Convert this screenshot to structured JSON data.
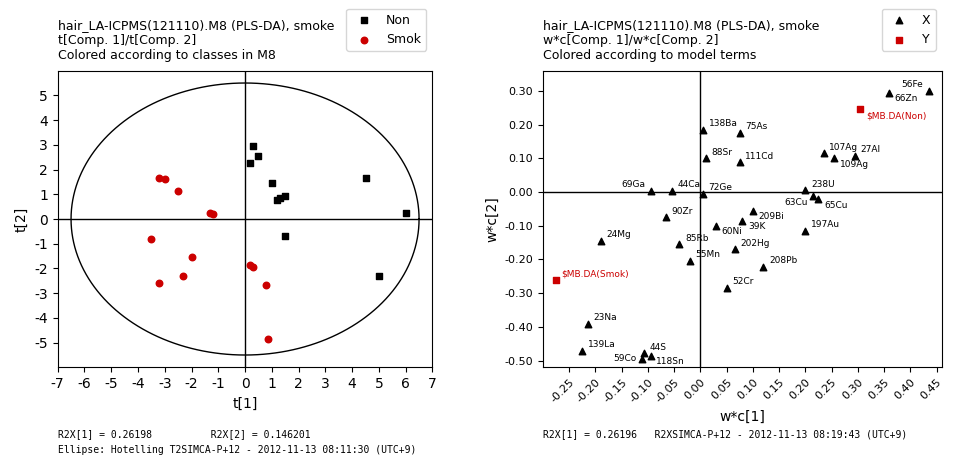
{
  "chart_data": [
    {
      "type": "scatter",
      "title": "hair_LA-ICPMS(121110).M8 (PLS-DA), smoke",
      "subtitle": [
        "t[Comp. 1]/t[Comp. 2]",
        "Colored according to classes in M8"
      ],
      "x_label": "t[1]",
      "y_label": "t[2]",
      "xlim": [
        -7,
        7
      ],
      "ylim": [
        -6,
        6
      ],
      "xticks": [
        -7,
        -6,
        -5,
        -4,
        -3,
        -2,
        -1,
        0,
        1,
        2,
        3,
        4,
        5,
        6,
        7
      ],
      "yticks": [
        -5,
        -4,
        -3,
        -2,
        -1,
        0,
        1,
        2,
        3,
        4,
        5
      ],
      "grid": false,
      "legend": "upper right",
      "ellipse": {
        "rx": 6.5,
        "ry": 5.5
      },
      "crosshair": {
        "x": 0,
        "y": 0
      },
      "series": [
        {
          "name": "Non",
          "color": "#000000",
          "marker": "square",
          "x": [
            0.3,
            0.2,
            0.5,
            1.0,
            1.3,
            1.5,
            1.2,
            1.5,
            4.5,
            5.0,
            6.0
          ],
          "y": [
            2.95,
            2.25,
            2.55,
            1.45,
            0.85,
            0.95,
            0.75,
            -0.7,
            1.65,
            -2.3,
            0.25
          ]
        },
        {
          "name": "Smok",
          "color": "#cc0000",
          "marker": "circle",
          "x": [
            -3.2,
            -3.0,
            -2.5,
            -1.3,
            -1.2,
            0.2,
            0.3,
            0.8,
            0.85,
            -3.5,
            -2.0,
            -2.3,
            -3.2
          ],
          "y": [
            1.65,
            1.6,
            1.15,
            0.25,
            0.2,
            -1.85,
            -1.95,
            -2.65,
            -4.85,
            -0.8,
            -1.55,
            -2.3,
            -2.6
          ]
        }
      ],
      "annotations": [
        "R2X[1] = 0.26198          R2X[2] = 0.146201",
        "Ellipse: Hotelling T2SIMCA-P+12 - 2012-11-13 08:11:30 (UTC+9)"
      ]
    },
    {
      "type": "scatter",
      "title": "hair_LA-ICPMS(121110).M8 (PLS-DA), smoke",
      "subtitle": [
        "w*c[Comp. 1]/w*c[Comp. 2]",
        "Colored according to model terms"
      ],
      "x_label": "w*c[1]",
      "y_label": "w*c[2]",
      "xlim": [
        -0.3,
        0.46
      ],
      "ylim": [
        -0.52,
        0.36
      ],
      "xticks": [
        -0.25,
        {
          "value": -0.2,
          "label": "-0.20"
        },
        -0.15,
        {
          "value": -0.1,
          "label": "-0.10"
        },
        -0.05,
        {
          "value": 0.0,
          "label": "0.00"
        },
        0.05,
        {
          "value": 0.1,
          "label": "0.10"
        },
        0.15,
        {
          "value": 0.2,
          "label": "0.20"
        },
        0.25,
        {
          "value": 0.3,
          "label": "0.30"
        },
        0.35,
        {
          "value": 0.4,
          "label": "0.40"
        },
        0.45
      ],
      "yticks": [
        {
          "value": -0.5,
          "label": "-0.50"
        },
        {
          "value": -0.4,
          "label": "-0.40"
        },
        {
          "value": -0.3,
          "label": "-0.30"
        },
        {
          "value": -0.2,
          "label": "-0.20"
        },
        {
          "value": -0.1,
          "label": "-0.10"
        },
        {
          "value": 0.0,
          "label": "0.00"
        },
        {
          "value": 0.1,
          "label": "0.10"
        },
        {
          "value": 0.2,
          "label": "0.20"
        },
        {
          "value": 0.3,
          "label": "0.30"
        }
      ],
      "grid": false,
      "legend": "upper right",
      "crosshair": {
        "x": 0,
        "y": 0
      },
      "series": [
        {
          "name": "X",
          "color": "#000000",
          "marker": "triangle",
          "labels": [
            "56Fe",
            "66Zn",
            "107Ag",
            "109Ag",
            "27Al",
            "138Ba",
            "75As",
            "88Sr",
            "111Cd",
            "69Ga",
            "44Ca",
            "72Ge",
            "238U",
            "63Cu",
            "65Cu",
            "209Bi",
            "39K",
            "90Zr",
            "60Ni",
            "197Au",
            "85Rb",
            "202Hg",
            "55Mn",
            "208Pb",
            "52Cr",
            "24Mg",
            "23Na",
            "139La",
            "44S",
            "118Sn",
            "59Co"
          ],
          "x": [
            0.435,
            0.36,
            0.235,
            0.255,
            0.295,
            0.005,
            0.075,
            0.01,
            0.075,
            -0.095,
            -0.055,
            0.005,
            0.2,
            0.215,
            0.225,
            0.1,
            0.08,
            -0.065,
            0.03,
            0.2,
            -0.04,
            0.065,
            -0.02,
            0.12,
            0.05,
            -0.19,
            -0.215,
            -0.225,
            -0.108,
            -0.095,
            -0.112
          ],
          "y": [
            0.3,
            0.295,
            0.115,
            0.1,
            0.108,
            0.185,
            0.175,
            0.1,
            0.088,
            0.004,
            0.004,
            -0.005,
            0.005,
            -0.013,
            -0.022,
            -0.055,
            -0.085,
            -0.075,
            -0.1,
            -0.115,
            -0.155,
            -0.17,
            -0.205,
            -0.222,
            -0.285,
            -0.145,
            -0.39,
            -0.47,
            -0.478,
            -0.485,
            -0.495
          ]
        },
        {
          "name": "Y",
          "color": "#cc0000",
          "marker": "square",
          "labels": [
            "$MB.DA(Non)",
            "$MB.DA(Smok)"
          ],
          "x": [
            0.305,
            -0.275
          ],
          "y": [
            0.245,
            -0.26
          ]
        }
      ],
      "annotations": [
        "R2X[1] = 0.26196   R2XSIMCA-P+12 - 2012-11-13 08:19:43 (UTC+9)"
      ]
    }
  ]
}
